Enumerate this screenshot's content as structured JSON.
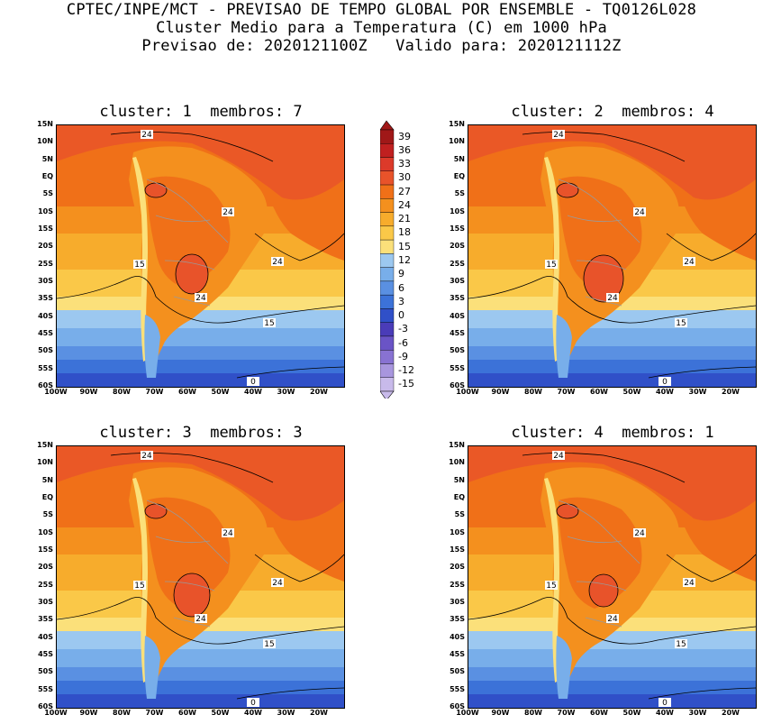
{
  "header": {
    "line1": "CPTEC/INPE/MCT - PREVISAO DE TEMPO GLOBAL POR ENSEMBLE - TQ0126L028",
    "line2": "Cluster Medio para a Temperatura (C) em 1000 hPa",
    "line3": "Previsao de: 2020121100Z   Valido para: 2020121112Z"
  },
  "panels": [
    {
      "title": "cluster: 1  membros: 7"
    },
    {
      "title": "cluster: 2  membros: 4"
    },
    {
      "title": "cluster: 3  membros: 3"
    },
    {
      "title": "cluster: 4  membros: 1"
    }
  ],
  "axes": {
    "lat_labels": [
      "15N",
      "10N",
      "5N",
      "EQ",
      "5S",
      "10S",
      "15S",
      "20S",
      "25S",
      "30S",
      "35S",
      "40S",
      "45S",
      "50S",
      "55S",
      "60S"
    ],
    "lon_labels": [
      "100W",
      "90W",
      "80W",
      "70W",
      "60W",
      "50W",
      "40W",
      "30W",
      "20W"
    ]
  },
  "contour_labels": {
    "c24": "24",
    "c15": "15",
    "c0": "0"
  },
  "colorbar": {
    "levels": [
      "39",
      "36",
      "33",
      "30",
      "27",
      "24",
      "21",
      "18",
      "15",
      "12",
      "9",
      "6",
      "3",
      "0",
      "-3",
      "-6",
      "-9",
      "-12",
      "-15"
    ],
    "colors": [
      "#a01818",
      "#c02020",
      "#dc3a2a",
      "#e8532a",
      "#f07018",
      "#f4901e",
      "#f7ac2c",
      "#fac848",
      "#fbe07a",
      "#9cc8f0",
      "#78aeea",
      "#5a90e2",
      "#3c72d8",
      "#3050c8",
      "#4a3cb8",
      "#6a54c6",
      "#8872d2",
      "#a896de",
      "#c8baea"
    ]
  }
}
